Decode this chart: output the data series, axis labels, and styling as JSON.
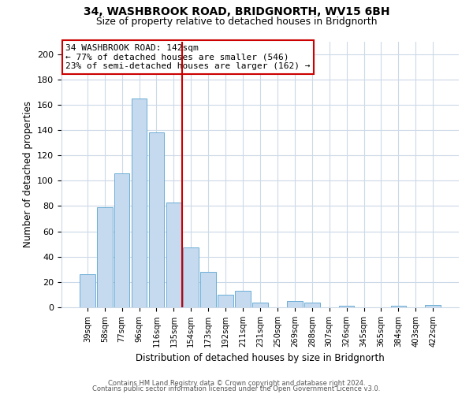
{
  "title": "34, WASHBROOK ROAD, BRIDGNORTH, WV15 6BH",
  "subtitle": "Size of property relative to detached houses in Bridgnorth",
  "xlabel": "Distribution of detached houses by size in Bridgnorth",
  "ylabel": "Number of detached properties",
  "bar_labels": [
    "39sqm",
    "58sqm",
    "77sqm",
    "96sqm",
    "116sqm",
    "135sqm",
    "154sqm",
    "173sqm",
    "192sqm",
    "211sqm",
    "231sqm",
    "250sqm",
    "269sqm",
    "288sqm",
    "307sqm",
    "326sqm",
    "345sqm",
    "365sqm",
    "384sqm",
    "403sqm",
    "422sqm"
  ],
  "bar_values": [
    26,
    79,
    106,
    165,
    138,
    83,
    47,
    28,
    10,
    13,
    4,
    0,
    5,
    4,
    0,
    1,
    0,
    0,
    1,
    0,
    2
  ],
  "bar_color": "#c5d9ef",
  "bar_edge_color": "#6baed6",
  "vline_x": 5.5,
  "vline_color": "#cc0000",
  "ylim": [
    0,
    210
  ],
  "yticks": [
    0,
    20,
    40,
    60,
    80,
    100,
    120,
    140,
    160,
    180,
    200
  ],
  "annotation_title": "34 WASHBROOK ROAD: 142sqm",
  "annotation_line1": "← 77% of detached houses are smaller (546)",
  "annotation_line2": "23% of semi-detached houses are larger (162) →",
  "annotation_box_color": "#ffffff",
  "annotation_box_edge": "#cc0000",
  "footer1": "Contains HM Land Registry data © Crown copyright and database right 2024.",
  "footer2": "Contains public sector information licensed under the Open Government Licence v3.0.",
  "bg_color": "#ffffff",
  "grid_color": "#ccd9e8"
}
